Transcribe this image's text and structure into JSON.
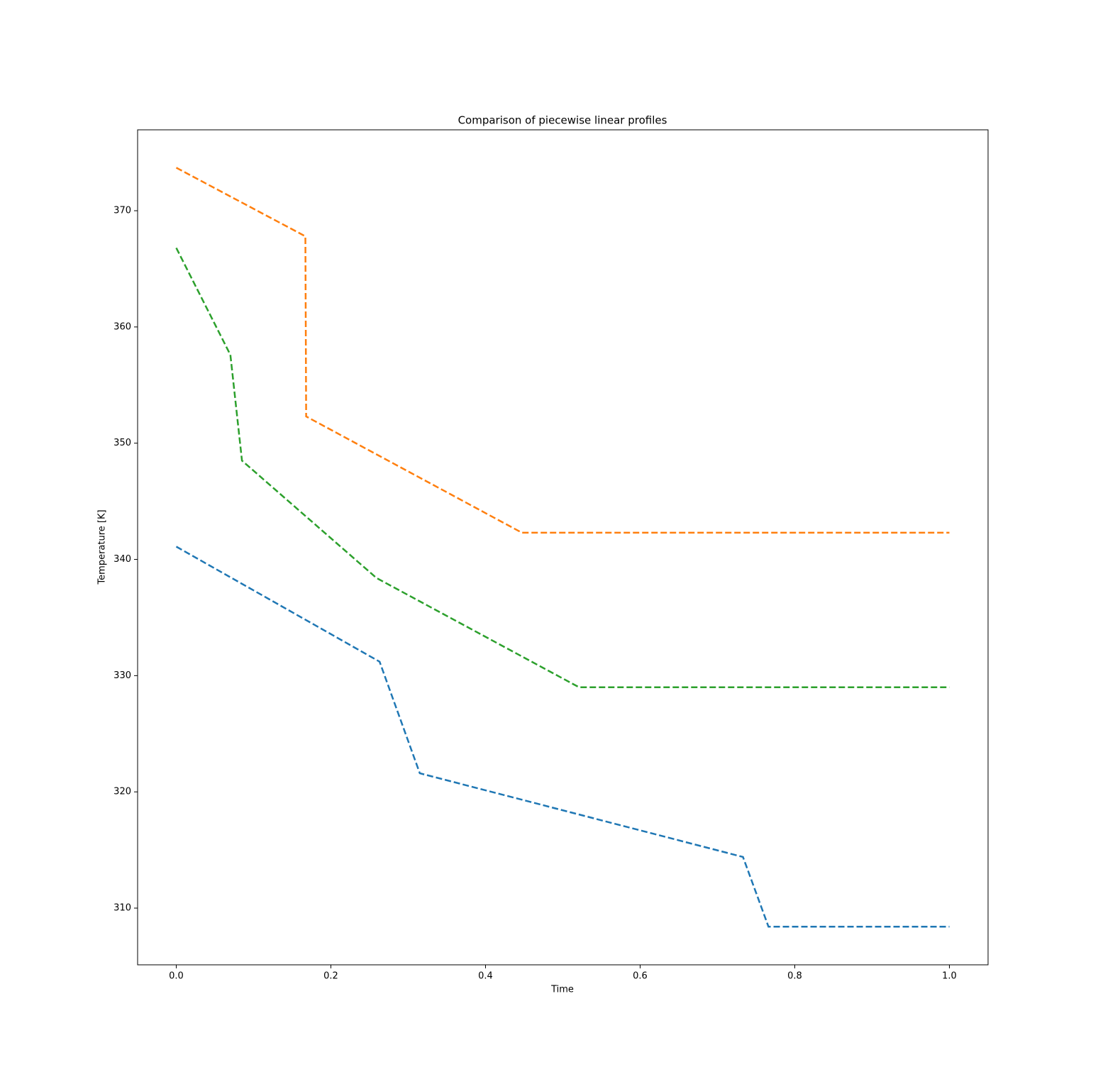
{
  "chart_data": {
    "type": "line",
    "title": "Comparison of piecewise linear profiles",
    "x_label": "Time",
    "y_label": "Temperature [K]",
    "series": [
      {
        "color": "#1f77b4",
        "x": [
          0,
          0.263,
          0.315,
          0.733,
          0.766,
          1.0
        ],
        "values": [
          341.1,
          331.2,
          321.6,
          314.4,
          308.4,
          308.4
        ]
      },
      {
        "color": "#ff7f0e",
        "x": [
          0,
          0.167,
          0.168,
          0.447,
          1.0
        ],
        "values": [
          373.7,
          367.8,
          352.3,
          342.3,
          342.3
        ]
      },
      {
        "color": "#2ca02c",
        "x": [
          0,
          0.07,
          0.085,
          0.259,
          0.521,
          1.0
        ],
        "values": [
          366.8,
          357.6,
          348.5,
          338.4,
          329.0,
          329.0
        ]
      }
    ],
    "xlim": [
      -0.05,
      1.05
    ],
    "ylim": [
      305.12,
      376.96
    ],
    "xticks": [
      {
        "value": 0,
        "label": "0.0"
      },
      {
        "value": 0.2,
        "label": "0.2"
      },
      {
        "value": 0.4,
        "label": "0.4"
      },
      {
        "value": 0.6,
        "label": "0.6"
      },
      {
        "value": 0.8,
        "label": "0.8"
      },
      {
        "value": 1.0,
        "label": "1.0"
      }
    ],
    "yticks": [
      310,
      320,
      330,
      340,
      350,
      360,
      370
    ],
    "grid": false,
    "dashed": true
  }
}
